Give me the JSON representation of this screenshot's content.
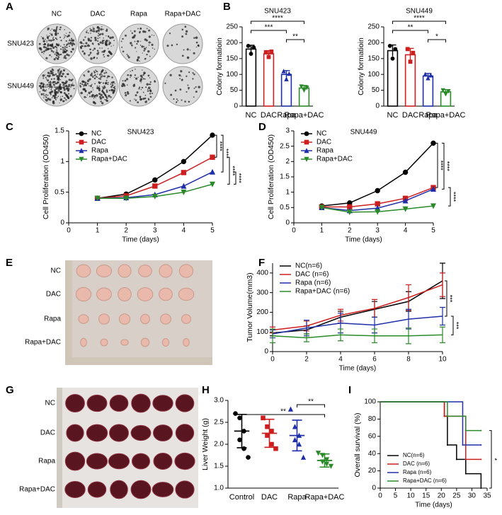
{
  "panel_letters": [
    "A",
    "B",
    "C",
    "D",
    "E",
    "F",
    "G",
    "H",
    "I"
  ],
  "photos": {
    "A": {
      "columns": [
        "NC",
        "DAC",
        "Rapa",
        "Rapa+DAC"
      ],
      "rows": [
        "SNU423",
        "SNU449"
      ]
    },
    "E": {
      "rows": [
        "NC",
        "DAC",
        "Rapa",
        "Rapa+DAC"
      ]
    },
    "G": {
      "rows": [
        "NC",
        "DAC",
        "Rapa",
        "Rapa+DAC"
      ]
    }
  },
  "chart_data": [
    {
      "type": "bar",
      "title": "SNU423",
      "y_label": "Colony formatioin",
      "categories": [
        "NC",
        "DAC",
        "Rapa",
        "Rapa+DAC"
      ],
      "colors": [
        "#000000",
        "#cc1f1f",
        "#1f2fa8",
        "#2a8a2a"
      ],
      "values": [
        180,
        165,
        100,
        57
      ],
      "errors": [
        12,
        10,
        12,
        8
      ],
      "points": [
        [
          190,
          165,
          185
        ],
        [
          170,
          155,
          172
        ],
        [
          110,
          85,
          102
        ],
        [
          62,
          50,
          58
        ]
      ],
      "ylim": [
        0,
        250
      ],
      "yticks": [
        0,
        50,
        100,
        150,
        200,
        250
      ],
      "annotations": [
        {
          "text": "****",
          "between": [
            "NC",
            "Rapa+DAC"
          ]
        },
        {
          "text": "***",
          "between": [
            "NC",
            "Rapa"
          ]
        },
        {
          "text": "**",
          "between": [
            "Rapa",
            "Rapa+DAC"
          ]
        }
      ]
    },
    {
      "type": "bar",
      "title": "SNU449",
      "y_label": "Colony formatioin",
      "categories": [
        "NC",
        "DAC",
        "Rapa",
        "Rapa+DAC"
      ],
      "colors": [
        "#000000",
        "#cc1f1f",
        "#1f2fa8",
        "#2a8a2a"
      ],
      "values": [
        175,
        162,
        95,
        45
      ],
      "errors": [
        18,
        20,
        8,
        7
      ],
      "points": [
        [
          190,
          150,
          180
        ],
        [
          180,
          140,
          168
        ],
        [
          100,
          88,
          97
        ],
        [
          50,
          38,
          47
        ]
      ],
      "ylim": [
        0,
        250
      ],
      "yticks": [
        0,
        50,
        100,
        150,
        200,
        250
      ],
      "annotations": [
        {
          "text": "****",
          "between": [
            "NC",
            "Rapa+DAC"
          ]
        },
        {
          "text": "**",
          "between": [
            "NC",
            "Rapa"
          ]
        },
        {
          "text": "*",
          "between": [
            "Rapa",
            "Rapa+DAC"
          ]
        }
      ]
    },
    {
      "type": "line",
      "title": "SNU423",
      "x_label": "Time (days)",
      "y_label": "Cell Proliferation (OD450)",
      "x": [
        1,
        2,
        3,
        4,
        5
      ],
      "xlim": [
        0,
        5
      ],
      "xticks": [
        0,
        1,
        2,
        3,
        4,
        5
      ],
      "ylim": [
        0,
        1.5
      ],
      "yticks": [
        0,
        0.5,
        1,
        1.5
      ],
      "legend": "upper left",
      "series": [
        {
          "name": "NC",
          "color": "#000000",
          "marker": "circle",
          "values": [
            0.4,
            0.47,
            0.7,
            1.0,
            1.43
          ]
        },
        {
          "name": "DAC",
          "color": "#cc1f1f",
          "marker": "square",
          "values": [
            0.4,
            0.44,
            0.6,
            0.82,
            1.07
          ]
        },
        {
          "name": "Rapa",
          "color": "#1f2fa8",
          "marker": "triangle",
          "values": [
            0.4,
            0.41,
            0.46,
            0.6,
            0.83
          ]
        },
        {
          "name": "Rapa+DAC",
          "color": "#2a8a2a",
          "marker": "triangle-down",
          "values": [
            0.4,
            0.4,
            0.43,
            0.5,
            0.63
          ]
        }
      ],
      "annotations": [
        {
          "text": "****",
          "between": [
            "NC",
            "DAC"
          ]
        },
        {
          "text": "****",
          "between": [
            "NC",
            "Rapa"
          ]
        },
        {
          "text": "****",
          "between": [
            "DAC",
            "Rapa+DAC"
          ]
        },
        {
          "text": "****",
          "between": [
            "Rapa",
            "Rapa+DAC"
          ]
        }
      ]
    },
    {
      "type": "line",
      "title": "SNU449",
      "x_label": "Time (days)",
      "y_label": "Cell Proliferation (OD450)",
      "x": [
        1,
        2,
        3,
        4,
        5
      ],
      "xlim": [
        0,
        5
      ],
      "xticks": [
        0,
        1,
        2,
        3,
        4,
        5
      ],
      "ylim": [
        0,
        3
      ],
      "yticks": [
        0,
        0.5,
        1,
        1.5,
        2,
        2.5,
        3
      ],
      "legend": "upper left",
      "series": [
        {
          "name": "NC",
          "color": "#000000",
          "marker": "circle",
          "values": [
            0.55,
            0.65,
            1.05,
            1.65,
            2.6
          ]
        },
        {
          "name": "DAC",
          "color": "#cc1f1f",
          "marker": "square",
          "values": [
            0.52,
            0.52,
            0.62,
            0.8,
            1.15
          ]
        },
        {
          "name": "Rapa",
          "color": "#1f2fa8",
          "marker": "triangle",
          "values": [
            0.5,
            0.4,
            0.48,
            0.72,
            1.1
          ]
        },
        {
          "name": "Rapa+DAC",
          "color": "#2a8a2a",
          "marker": "triangle-down",
          "values": [
            0.5,
            0.35,
            0.36,
            0.45,
            0.55
          ]
        }
      ],
      "annotations": [
        {
          "text": "****",
          "between": [
            "NC",
            "DAC"
          ]
        },
        {
          "text": "****",
          "between": [
            "NC",
            "Rapa"
          ]
        },
        {
          "text": "****",
          "between": [
            "DAC",
            "Rapa+DAC"
          ]
        }
      ]
    },
    {
      "type": "line",
      "x_label": "Time (days)",
      "y_label": "Tumor Volume(mm3)",
      "x": [
        0,
        2,
        4,
        6,
        8,
        10
      ],
      "xlim": [
        0,
        10
      ],
      "xticks": [
        0,
        2,
        4,
        6,
        8,
        10
      ],
      "ylim": [
        0,
        450
      ],
      "yticks": [
        0,
        100,
        200,
        300,
        400
      ],
      "legend": "upper left",
      "series": [
        {
          "name": "NC(n=6)",
          "color": "#000000",
          "marker": "none",
          "values": [
            95,
            110,
            175,
            215,
            255,
            360
          ],
          "errors": [
            15,
            20,
            30,
            40,
            50,
            90
          ]
        },
        {
          "name": "DAC (n=6)",
          "color": "#cc1f1f",
          "marker": "none",
          "values": [
            110,
            130,
            185,
            220,
            275,
            340
          ],
          "errors": [
            15,
            25,
            30,
            45,
            65,
            60
          ]
        },
        {
          "name": "Rapa (n=6)",
          "color": "#1f2fa8",
          "marker": "none",
          "values": [
            90,
            120,
            145,
            135,
            165,
            180
          ],
          "errors": [
            20,
            40,
            50,
            40,
            50,
            45
          ]
        },
        {
          "name": "Rapa+DAC (n=6)",
          "color": "#2a8a2a",
          "marker": "none",
          "values": [
            80,
            70,
            85,
            80,
            80,
            85
          ],
          "errors": [
            35,
            20,
            30,
            35,
            40,
            40
          ]
        }
      ],
      "annotations": [
        {
          "text": "***",
          "between": [
            "NC(n=6)",
            "Rapa (n=6)"
          ]
        },
        {
          "text": "***",
          "between": [
            "Rapa (n=6)",
            "Rapa+DAC (n=6)"
          ]
        }
      ]
    },
    {
      "type": "dot",
      "y_label": "Liver Weight (g)",
      "categories": [
        "Control",
        "DAC",
        "Rapa",
        "Rapa+DAC"
      ],
      "colors": [
        "#000000",
        "#cc1f1f",
        "#1f2fa8",
        "#2a8a2a"
      ],
      "markers": [
        "circle",
        "square",
        "triangle",
        "triangle-down"
      ],
      "means": [
        2.3,
        2.25,
        2.2,
        1.63
      ],
      "sds": [
        0.38,
        0.32,
        0.35,
        0.15
      ],
      "points": [
        [
          2.7,
          2.6,
          2.3,
          2.1,
          1.9,
          1.7
        ],
        [
          2.6,
          2.4,
          2.3,
          2.2,
          2.0,
          1.9
        ],
        [
          2.8,
          2.4,
          2.2,
          2.1,
          2.0,
          1.7
        ],
        [
          1.8,
          1.75,
          1.65,
          1.6,
          1.55,
          1.5
        ]
      ],
      "ylim": [
        1.0,
        3.0
      ],
      "yticks": [
        {
          "value": 1.0,
          "label": "1.0"
        },
        {
          "value": 1.5,
          "label": "1.5"
        },
        {
          "value": 2.0,
          "label": "2.0"
        },
        {
          "value": 2.5,
          "label": "2.5"
        },
        {
          "value": 3.0,
          "label": "3.0"
        }
      ],
      "annotations": [
        {
          "text": "**",
          "between": [
            "Rapa",
            "Rapa+DAC"
          ]
        },
        {
          "text": "**",
          "between": [
            "Control",
            "Rapa+DAC"
          ]
        }
      ]
    },
    {
      "type": "step",
      "x_label": "Time (days)",
      "y_label": "Overall survival (%)",
      "xlim": [
        0,
        35
      ],
      "xticks": [
        0,
        5,
        10,
        15,
        20,
        25,
        30,
        35
      ],
      "ylim": [
        0,
        100
      ],
      "yticks": [
        0,
        20,
        40,
        60,
        80,
        100
      ],
      "legend": "lower left",
      "series": [
        {
          "name": "NC(n=6)",
          "color": "#000000",
          "x": [
            0,
            21,
            22,
            25,
            28,
            33
          ],
          "values": [
            100,
            83.3,
            50,
            33.3,
            16.7,
            0
          ]
        },
        {
          "name": "DAC (n=6)",
          "color": "#cc1f1f",
          "x": [
            0,
            21,
            28,
            33
          ],
          "values": [
            100,
            83.3,
            33.3,
            33.3
          ]
        },
        {
          "name": "Rapa (n=6)",
          "color": "#1f2fa8",
          "x": [
            0,
            27,
            33
          ],
          "values": [
            100,
            50,
            50
          ]
        },
        {
          "name": "Rapa+DAC (n=6)",
          "color": "#2a8a2a",
          "x": [
            0,
            22,
            28,
            33
          ],
          "values": [
            100,
            83.3,
            66.7,
            66.7
          ]
        }
      ],
      "annotations": [
        {
          "text": "*",
          "between": [
            "Rapa+DAC (n=6)",
            "NC(n=6)"
          ]
        }
      ]
    }
  ]
}
